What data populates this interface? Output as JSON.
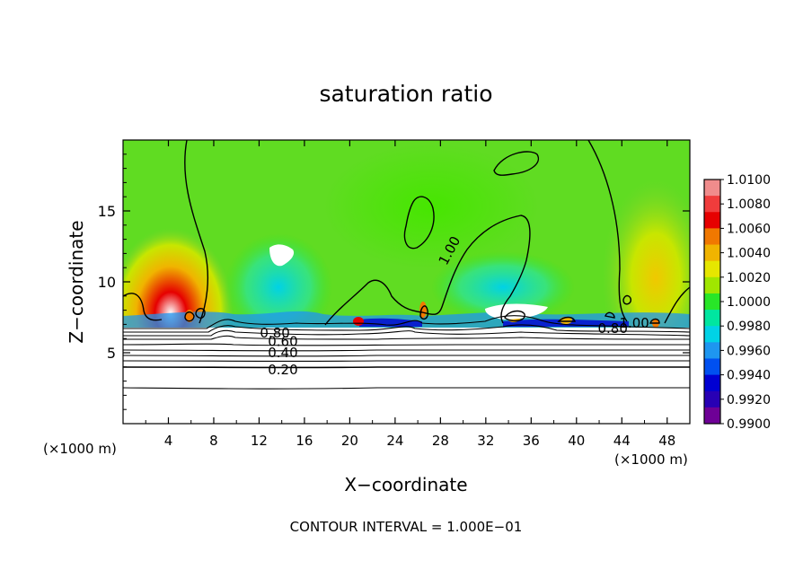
{
  "chart_data": {
    "type": "heatmap",
    "title": "saturation ratio",
    "xlabel": "X−coordinate",
    "ylabel": "Z−coordinate",
    "x_unit_left": "(×1000 m)",
    "x_unit_right": "(×1000 m)",
    "footer": "CONTOUR INTERVAL = 1.000E−01",
    "xlim": [
      0,
      50
    ],
    "ylim": [
      0,
      20
    ],
    "x_ticks": [
      4,
      8,
      12,
      16,
      20,
      24,
      28,
      32,
      36,
      40,
      44,
      48
    ],
    "x_tick_labels": [
      "4",
      "8",
      "12",
      "16",
      "20",
      "24",
      "28",
      "32",
      "36",
      "40",
      "44",
      "48"
    ],
    "y_ticks": [
      5,
      10,
      15
    ],
    "y_tick_labels": [
      "5",
      "10",
      "15"
    ],
    "colorbar": {
      "min": 0.99,
      "max": 1.01,
      "labels": [
        "1.0100",
        "1.0080",
        "1.0060",
        "1.0040",
        "1.0020",
        "1.0000",
        "0.9980",
        "0.9960",
        "0.9940",
        "0.9920",
        "0.9900"
      ],
      "colors": [
        "#f08c8c",
        "#f03c3c",
        "#e60000",
        "#f07800",
        "#f0b400",
        "#e6e600",
        "#a0e600",
        "#28e628",
        "#00e6a0",
        "#00d2e6",
        "#1e96f0",
        "#0050f0",
        "#0000d2",
        "#2800b4",
        "#6e0096"
      ]
    },
    "contour_labels": [
      {
        "text": "1.00",
        "x": 28.8,
        "y": 12.2,
        "angle": -62
      },
      {
        "text": "0.80",
        "x": 13.4,
        "y": 6.4,
        "angle": 0
      },
      {
        "text": "0.60",
        "x": 14.1,
        "y": 5.8,
        "angle": 0
      },
      {
        "text": "0.40",
        "x": 14.1,
        "y": 5.0,
        "angle": 0
      },
      {
        "text": "0.20",
        "x": 14.1,
        "y": 3.8,
        "angle": 0
      },
      {
        "text": "0.80",
        "x": 43.2,
        "y": 6.7,
        "angle": 0
      },
      {
        "text": "1.00",
        "x": 45.1,
        "y": 7.1,
        "angle": 0
      }
    ]
  }
}
